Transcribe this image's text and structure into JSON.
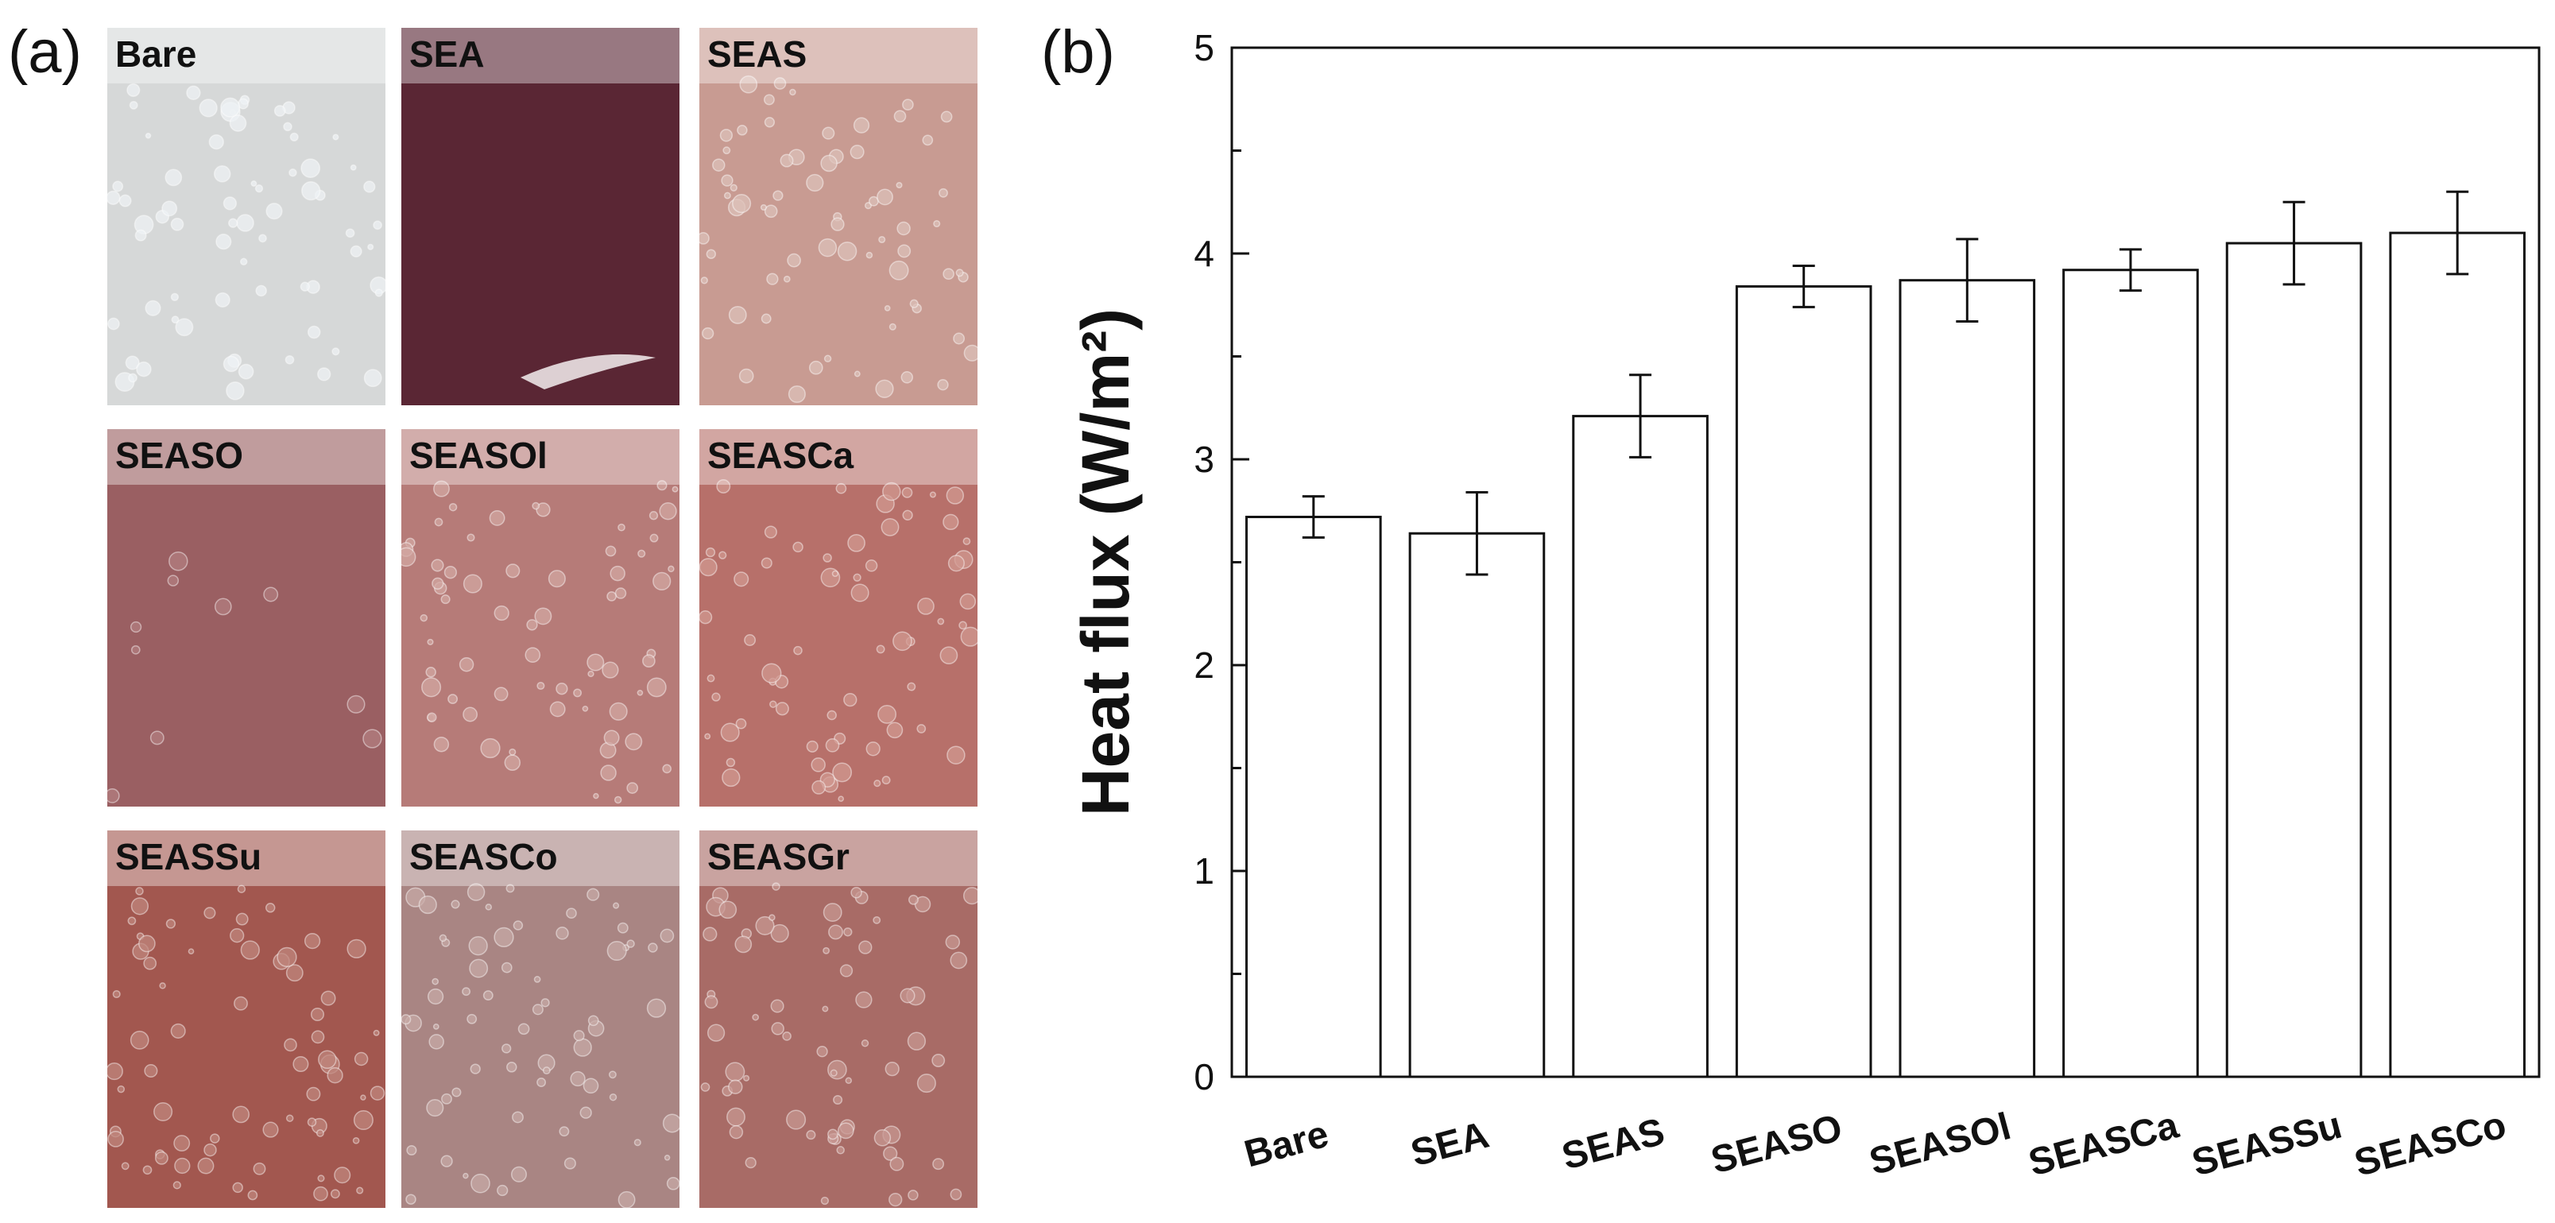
{
  "panel_a": {
    "letter": "(a)",
    "photos": [
      {
        "label": "Bare",
        "tint": "#d6d8d8",
        "drop": "#eef2f4"
      },
      {
        "label": "SEA",
        "tint": "#5a2634",
        "drop": "#6a3442"
      },
      {
        "label": "SEAS",
        "tint": "#c89b92",
        "drop": "#dcc0b8"
      },
      {
        "label": "SEASO",
        "tint": "#9a5f62",
        "drop": "#b27e80"
      },
      {
        "label": "SEASOl",
        "tint": "#b67b78",
        "drop": "#d2a7a2"
      },
      {
        "label": "SEASCa",
        "tint": "#b7706a",
        "drop": "#d09890"
      },
      {
        "label": "SEASSu",
        "tint": "#a2574f",
        "drop": "#bf857c"
      },
      {
        "label": "SEASCo",
        "tint": "#a98583",
        "drop": "#c7aaa6"
      },
      {
        "label": "SEASGr",
        "tint": "#a86b66",
        "drop": "#c79791"
      }
    ]
  },
  "panel_b": {
    "letter": "(b)"
  },
  "chart_data": {
    "type": "bar",
    "categories": [
      "Bare",
      "SEA",
      "SEAS",
      "SEASO",
      "SEASOl",
      "SEASCa",
      "SEASSu",
      "SEASCo"
    ],
    "values": [
      2.72,
      2.64,
      3.21,
      3.84,
      3.87,
      3.92,
      4.05,
      4.1
    ],
    "errors": [
      0.1,
      0.2,
      0.2,
      0.1,
      0.2,
      0.1,
      0.2,
      0.2
    ],
    "ylabel": "Heat flux (W/m²)",
    "ylim": [
      0,
      5
    ],
    "yticks": [
      "0",
      "1",
      "2",
      "3",
      "4",
      "5"
    ],
    "grid": false,
    "bar_color": "#ffffff",
    "edge_color": "#111111"
  }
}
